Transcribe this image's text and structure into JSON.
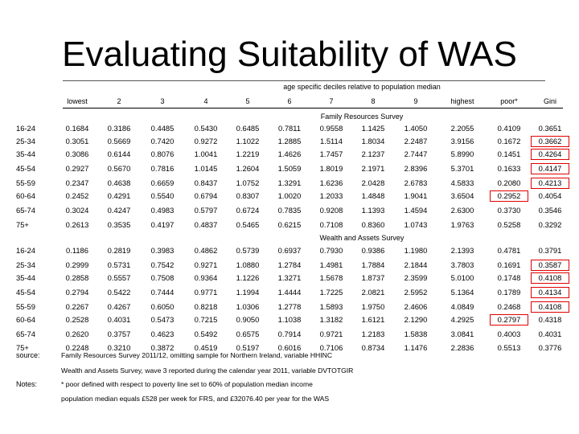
{
  "title": "Evaluating Suitability of WAS",
  "table": {
    "super_header": "age specific deciles relative to population median",
    "columns": [
      "lowest",
      "2",
      "3",
      "4",
      "5",
      "6",
      "7",
      "8",
      "9",
      "highest",
      "poor*",
      "Gini"
    ],
    "sections": [
      {
        "title": "Family Resources Survey",
        "rows": [
          {
            "label": "16-24",
            "values": [
              "0.1684",
              "0.3186",
              "0.4485",
              "0.5430",
              "0.6485",
              "0.7811",
              "0.9558",
              "1.1425",
              "1.4050",
              "2.2055",
              "0.4109",
              "0.3651"
            ]
          },
          {
            "label": "25-34",
            "values": [
              "0.3051",
              "0.5669",
              "0.7420",
              "0.9272",
              "1.1022",
              "1.2885",
              "1.5114",
              "1.8034",
              "2.2487",
              "3.9156",
              "0.1672",
              "0.3662"
            ],
            "highlight": [
              11
            ]
          },
          {
            "label": "35-44",
            "values": [
              "0.3086",
              "0.6144",
              "0.8076",
              "1.0041",
              "1.2219",
              "1.4626",
              "1.7457",
              "2.1237",
              "2.7447",
              "5.8990",
              "0.1451",
              "0.4264"
            ],
            "highlight": [
              11
            ]
          },
          {
            "label": "45-54",
            "values": [
              "0.2927",
              "0.5670",
              "0.7816",
              "1.0145",
              "1.2604",
              "1.5059",
              "1.8019",
              "2.1971",
              "2.8396",
              "5.3701",
              "0.1633",
              "0.4147"
            ],
            "highlight": [
              11
            ]
          },
          {
            "label": "55-59",
            "values": [
              "0.2347",
              "0.4638",
              "0.6659",
              "0.8437",
              "1.0752",
              "1.3291",
              "1.6236",
              "2.0428",
              "2.6783",
              "4.5833",
              "0.2080",
              "0.4213"
            ],
            "highlight": [
              11
            ]
          },
          {
            "label": "60-64",
            "values": [
              "0.2452",
              "0.4291",
              "0.5540",
              "0.6794",
              "0.8307",
              "1.0020",
              "1.2033",
              "1.4848",
              "1.9041",
              "3.6504",
              "0.2952",
              "0.4054"
            ],
            "highlight": [
              10
            ]
          },
          {
            "label": "65-74",
            "values": [
              "0.3024",
              "0.4247",
              "0.4983",
              "0.5797",
              "0.6724",
              "0.7835",
              "0.9208",
              "1.1393",
              "1.4594",
              "2.6300",
              "0.3730",
              "0.3546"
            ]
          },
          {
            "label": "75+",
            "values": [
              "0.2613",
              "0.3535",
              "0.4197",
              "0.4837",
              "0.5465",
              "0.6215",
              "0.7108",
              "0.8360",
              "1.0743",
              "1.9763",
              "0.5258",
              "0.3292"
            ]
          }
        ]
      },
      {
        "title": "Wealth and Assets Survey",
        "rows": [
          {
            "label": "16-24",
            "values": [
              "0.1186",
              "0.2819",
              "0.3983",
              "0.4862",
              "0.5739",
              "0.6937",
              "0.7930",
              "0.9386",
              "1.1980",
              "2.1393",
              "0.4781",
              "0.3791"
            ]
          },
          {
            "label": "25-34",
            "values": [
              "0.2999",
              "0.5731",
              "0.7542",
              "0.9271",
              "1.0880",
              "1.2784",
              "1.4981",
              "1.7884",
              "2.1844",
              "3.7803",
              "0.1691",
              "0.3587"
            ],
            "highlight": [
              11
            ]
          },
          {
            "label": "35-44",
            "values": [
              "0.2858",
              "0.5557",
              "0.7508",
              "0.9364",
              "1.1226",
              "1.3271",
              "1.5678",
              "1.8737",
              "2.3599",
              "5.0100",
              "0.1748",
              "0.4108"
            ],
            "highlight": [
              11
            ]
          },
          {
            "label": "45-54",
            "values": [
              "0.2794",
              "0.5422",
              "0.7444",
              "0.9771",
              "1.1994",
              "1.4444",
              "1.7225",
              "2.0821",
              "2.5952",
              "5.1364",
              "0.1789",
              "0.4134"
            ],
            "highlight": [
              11
            ]
          },
          {
            "label": "55-59",
            "values": [
              "0.2267",
              "0.4267",
              "0.6050",
              "0.8218",
              "1.0306",
              "1.2778",
              "1.5893",
              "1.9750",
              "2.4606",
              "4.0849",
              "0.2468",
              "0.4108"
            ],
            "highlight": [
              11
            ]
          },
          {
            "label": "60-64",
            "values": [
              "0.2528",
              "0.4031",
              "0.5473",
              "0.7215",
              "0.9050",
              "1.1038",
              "1.3182",
              "1.6121",
              "2.1290",
              "4.2925",
              "0.2797",
              "0.4318"
            ],
            "highlight": [
              10
            ]
          },
          {
            "label": "65-74",
            "values": [
              "0.2620",
              "0.3757",
              "0.4623",
              "0.5492",
              "0.6575",
              "0.7914",
              "0.9721",
              "1.2183",
              "1.5838",
              "3.0841",
              "0.4003",
              "0.4031"
            ]
          },
          {
            "label": "75+",
            "values": [
              "0.2248",
              "0.3210",
              "0.3872",
              "0.4519",
              "0.5197",
              "0.6016",
              "0.7106",
              "0.8734",
              "1.1476",
              "2.2836",
              "0.5513",
              "0.3776"
            ]
          }
        ]
      }
    ]
  },
  "source_label": "source:",
  "source_lines": [
    "Family Resources Survey 2011/12, omitting sample for Northern Ireland, variable HHINC",
    "Wealth and Assets Survey, wave 3 reported during the calendar year 2011, variable DVTOTGIR"
  ],
  "notes_label": "Notes:",
  "notes_lines": [
    "* poor defined with respect to poverty line set to 60% of population median income",
    "population median equals £528 per week for FRS, and £32076.40 per year for the WAS"
  ],
  "colors": {
    "highlight_border": "#e00000",
    "text": "#000000",
    "background": "#ffffff"
  }
}
